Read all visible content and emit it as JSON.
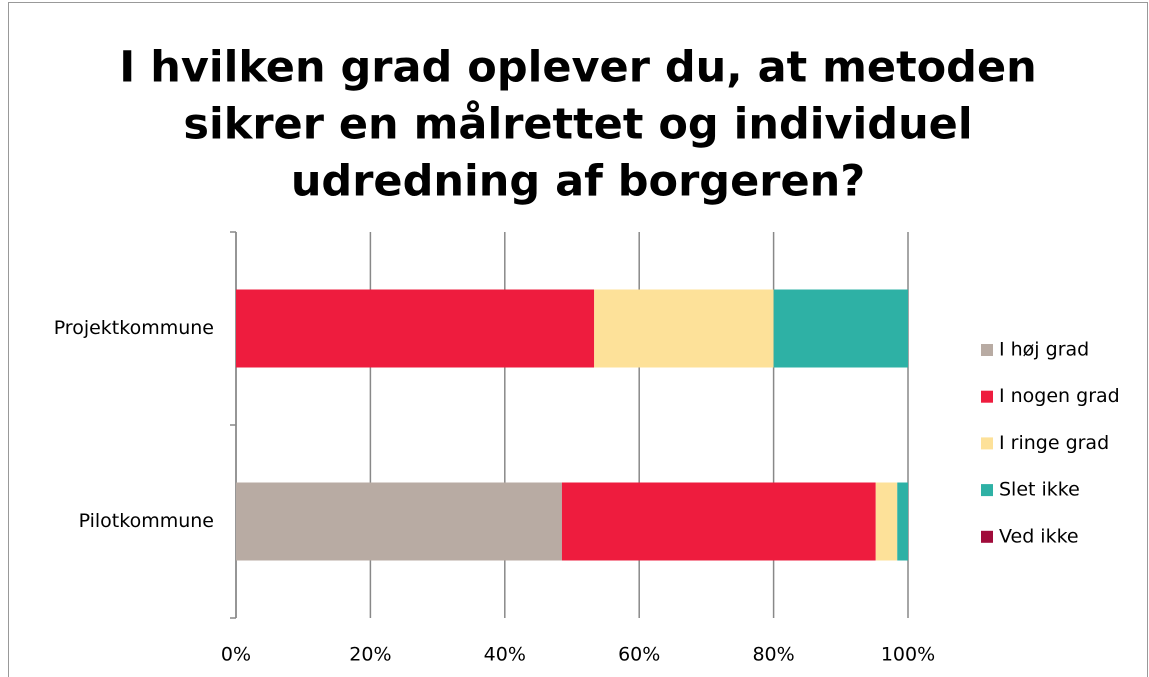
{
  "chart_data": {
    "type": "stacked_barh",
    "title": [
      "I hvilken grad oplever du, at metoden",
      "sikrer en målrettet og individuel",
      "udredning af borgeren?"
    ],
    "categories": [
      "Projektkommune",
      "Pilotkommune"
    ],
    "series": [
      {
        "name": "I høj grad",
        "color": "#b8aba3",
        "values": [
          0,
          48.5
        ]
      },
      {
        "name": "I nogen grad",
        "color": "#ee1c3e",
        "values": [
          53.3,
          46.7
        ]
      },
      {
        "name": "I ringe grad",
        "color": "#fde199",
        "values": [
          26.7,
          3.2
        ]
      },
      {
        "name": "Slet ikke",
        "color": "#2eb1a5",
        "values": [
          20,
          1.6
        ]
      },
      {
        "name": "Ved ikke",
        "color": "#a00b3a",
        "values": [
          0,
          0
        ]
      }
    ],
    "xlim": [
      0,
      100
    ],
    "xticks": [
      {
        "value": 0,
        "label": "0%"
      },
      {
        "value": 20,
        "label": "20%"
      },
      {
        "value": 40,
        "label": "40%"
      },
      {
        "value": 60,
        "label": "60%"
      },
      {
        "value": 80,
        "label": "80%"
      },
      {
        "value": 100,
        "label": "100%"
      }
    ],
    "grid": true,
    "legend": "right"
  }
}
